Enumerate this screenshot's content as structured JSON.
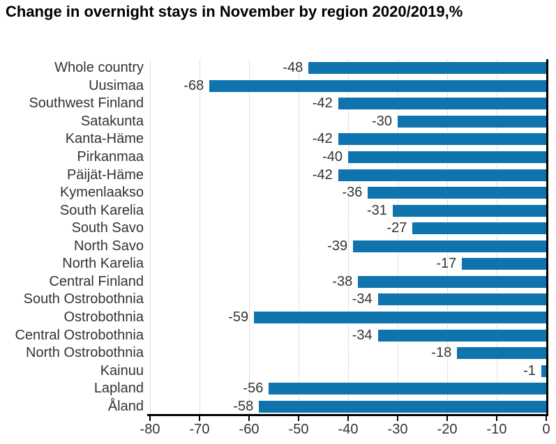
{
  "title": "Change in overnight stays in November by region 2020/2019,%",
  "chart_data": {
    "type": "bar",
    "orientation": "horizontal",
    "title": "Change in overnight stays in November by region 2020/2019,%",
    "categories": [
      "Whole country",
      "Uusimaa",
      "Southwest Finland",
      "Satakunta",
      "Kanta-Häme",
      "Pirkanmaa",
      "Päijät-Häme",
      "Kymenlaakso",
      "South Karelia",
      "South Savo",
      "North Savo",
      "North Karelia",
      "Central Finland",
      "South Ostrobothnia",
      "Ostrobothnia",
      "Central Ostrobothnia",
      "North Ostrobothnia",
      "Kainuu",
      "Lapland",
      "Åland"
    ],
    "values": [
      -48,
      -68,
      -42,
      -30,
      -42,
      -40,
      -42,
      -36,
      -31,
      -27,
      -39,
      -17,
      -38,
      -34,
      -59,
      -34,
      -18,
      -1,
      -56,
      -58
    ],
    "value_labels": [
      "-48",
      "-68",
      "-42",
      "-30",
      "-42",
      "-40",
      "-42",
      "-36",
      "-31",
      "-27",
      "-39",
      "-17",
      "-38",
      "-34",
      "-59",
      "-34",
      "-18",
      "-1",
      "-56",
      "-58"
    ],
    "xlabel": "",
    "ylabel": "",
    "xlim": [
      -80,
      0
    ],
    "xticks": [
      -80,
      -70,
      -60,
      -50,
      -40,
      -30,
      -20,
      -10,
      0
    ],
    "xtick_labels": [
      "-80",
      "-70",
      "-60",
      "-50",
      "-40",
      "-30",
      "-20",
      "-10",
      "0"
    ],
    "grid": true,
    "legend": false,
    "bar_color": "#0f73ae",
    "axis_color": "#000000",
    "gridline_color": "#c3c3c3",
    "text_color": "#333333"
  }
}
